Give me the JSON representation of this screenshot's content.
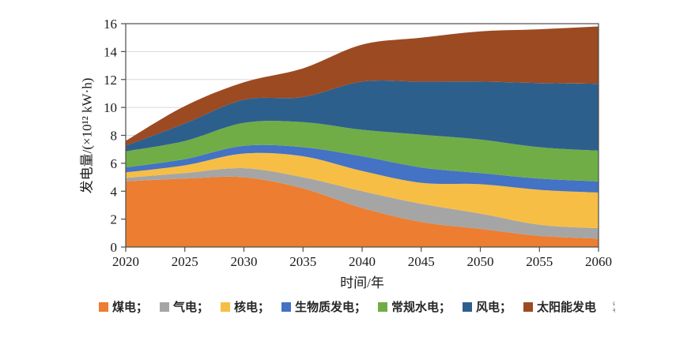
{
  "chart_data": {
    "type": "area",
    "stacked": true,
    "title": "",
    "xlabel": "时间/年",
    "ylabel": "发电量/(×10¹² kW·h)",
    "x": [
      2020,
      2025,
      2030,
      2035,
      2040,
      2045,
      2050,
      2055,
      2060
    ],
    "xticks": [
      2020,
      2025,
      2030,
      2035,
      2040,
      2045,
      2050,
      2055,
      2060
    ],
    "yticks": [
      0,
      2,
      4,
      6,
      8,
      10,
      12,
      14,
      16
    ],
    "xlim": [
      2020,
      2060
    ],
    "ylim": [
      0,
      16
    ],
    "grid": "horizontal",
    "legend_position": "bottom",
    "series": [
      {
        "name": "煤电",
        "color": "#ED7D31",
        "values": [
          4.7,
          4.9,
          5.0,
          4.2,
          2.8,
          1.8,
          1.3,
          0.8,
          0.6
        ]
      },
      {
        "name": "气电",
        "color": "#A5A5A5",
        "values": [
          0.25,
          0.4,
          0.65,
          0.8,
          1.2,
          1.3,
          1.1,
          0.8,
          0.75
        ]
      },
      {
        "name": "核电",
        "color": "#F7BE45",
        "values": [
          0.4,
          0.55,
          1.05,
          1.5,
          1.45,
          1.5,
          2.1,
          2.5,
          2.55
        ]
      },
      {
        "name": "生物质发电",
        "color": "#4472C4",
        "values": [
          0.35,
          0.45,
          0.55,
          0.65,
          1.05,
          1.1,
          0.8,
          0.8,
          0.8
        ]
      },
      {
        "name": "常规水电",
        "color": "#70AD47",
        "values": [
          1.15,
          1.3,
          1.65,
          1.8,
          1.9,
          2.35,
          2.4,
          2.25,
          2.2
        ]
      },
      {
        "name": "风电",
        "color": "#2D5F8D",
        "values": [
          0.4,
          1.25,
          1.65,
          1.8,
          3.45,
          3.8,
          4.15,
          4.6,
          4.8
        ]
      },
      {
        "name": "太阳能发电",
        "color": "#9C4A22",
        "values": [
          0.35,
          1.25,
          1.25,
          2.05,
          2.65,
          3.15,
          3.6,
          3.85,
          4.1
        ]
      }
    ]
  },
  "legend": {
    "separator": "；"
  },
  "axis": {
    "border_color": "#4d4d4d",
    "grid_color": "#d9d9d9",
    "tick_color": "#4d4d4d",
    "label_color": "#1a1a1a"
  },
  "artifact": {
    "text": "ś\ną"
  },
  "layout_note_colors": {
    "background": "#ffffff"
  }
}
